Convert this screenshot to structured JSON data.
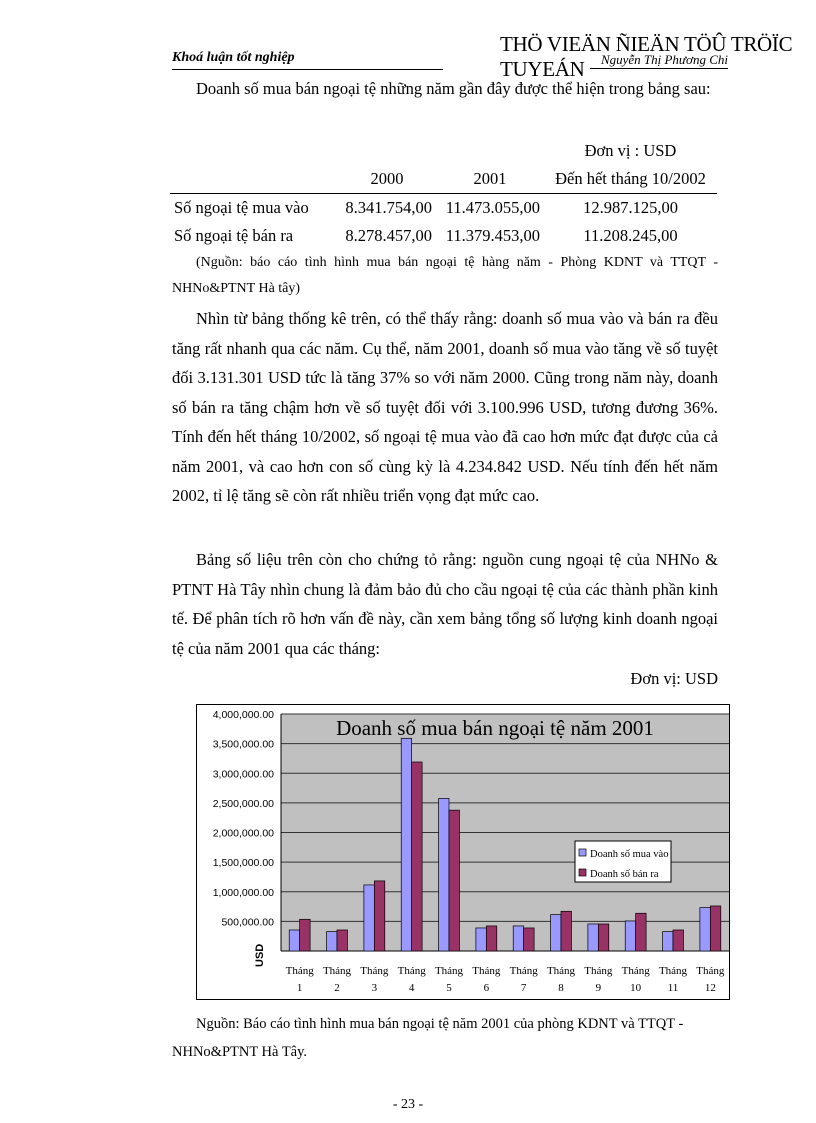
{
  "header": {
    "left": "Khoá luận tốt nghiệp",
    "right": "THÖ VIEÄN ÑIEÄN TÖÛ TRÖÏC TUYEÁN",
    "author": "Nguyễn Thị Phương Chi"
  },
  "intro": "Doanh số mua bán ngoại tệ những năm gần đây được thể hiện trong bảng sau:",
  "table": {
    "unit": "Đơn vị : USD",
    "columns": [
      "",
      "2000",
      "2001",
      "Đến hết tháng 10/2002"
    ],
    "rows": [
      [
        "Số ngoại tệ mua vào",
        "8.341.754,00",
        "11.473.055,00",
        "12.987.125,00"
      ],
      [
        "Số ngoại tệ bán ra",
        "8.278.457,00",
        "11.379.453,00",
        "11.208.245,00"
      ]
    ],
    "source": "(Nguồn: báo cáo tình hình mua bán ngoại tệ hàng năm - Phòng KDNT và TTQT - NHNo&PTNT Hà tây)"
  },
  "para1": "Nhìn từ bảng thống kê trên, có thể thấy rằng: doanh số  mua vào và bán ra đều tăng rất nhanh qua các năm. Cụ thể, năm 2001, doanh số mua vào tăng về số tuyệt đối 3.131.301 USD tức là tăng 37% so với năm 2000. Cũng trong năm này, doanh số bán ra tăng chậm hơn về số tuyệt đối với 3.100.996 USD, tương đương 36%. Tính đến hết tháng 10/2002, số ngoại tệ mua vào đã cao hơn mức đạt được của cả năm 2001, và cao hơn con số cùng kỳ là 4.234.842 USD. Nếu tính đến hết năm 2002, tỉ lệ tăng sẽ còn rất nhiều triển vọng đạt mức cao.",
  "para2": "Bảng số liệu trên còn cho chứng tỏ rằng: nguồn cung ngoại tệ của NHNo & PTNT Hà Tây nhìn chung là đảm bảo đủ cho cầu ngoại tệ của các thành phần kinh tế. Để phân tích rõ hơn vấn đề này, cần xem bảng tổng số lượng kinh doanh ngoại tệ của năm 2001 qua các tháng:",
  "chart_unit": "Đơn vị: USD",
  "chart_data": {
    "type": "bar",
    "title": "Doanh số mua bán ngoại tệ năm 2001",
    "ylabel": "USD",
    "xlabel": "",
    "ylim": [
      0,
      4000000
    ],
    "yticks": [
      "500,000.00",
      "1,000,000.00",
      "1,500,000.00",
      "2,000,000.00",
      "2,500,000.00",
      "3,000,000.00",
      "3,500,000.00",
      "4,000,000.00"
    ],
    "ytick_values": [
      500000,
      1000000,
      1500000,
      2000000,
      2500000,
      3000000,
      3500000,
      4000000
    ],
    "categories": [
      [
        "Tháng",
        "1"
      ],
      [
        "Tháng",
        "2"
      ],
      [
        "Tháng",
        "3"
      ],
      [
        "Tháng",
        "4"
      ],
      [
        "Tháng",
        "5"
      ],
      [
        "Tháng",
        "6"
      ],
      [
        "Tháng",
        "7"
      ],
      [
        "Tháng",
        "8"
      ],
      [
        "Tháng",
        "9"
      ],
      [
        "Tháng",
        "10"
      ],
      [
        "Tháng",
        "11"
      ],
      [
        "Tháng",
        "12"
      ]
    ],
    "series": [
      {
        "name": "Doanh số mua vào",
        "color": "#9999ff",
        "values": [
          355000,
          327000,
          1115000,
          3590000,
          2575000,
          389000,
          423000,
          614000,
          456000,
          507000,
          327000,
          732000
        ]
      },
      {
        "name": "Doanh số bán ra",
        "color": "#993366",
        "values": [
          535000,
          355000,
          1183000,
          3190000,
          2377000,
          423000,
          389000,
          670000,
          456000,
          637000,
          355000,
          760000
        ]
      }
    ],
    "grid": true,
    "plot_background": "#c0c0c0",
    "legend": "right"
  },
  "caption": "Nguồn: Báo cáo tình hình mua bán ngoại tệ năm 2001 của phòng KDNT và TTQT - NHNo&PTNT Hà Tây.",
  "page_number": "- 23 -"
}
